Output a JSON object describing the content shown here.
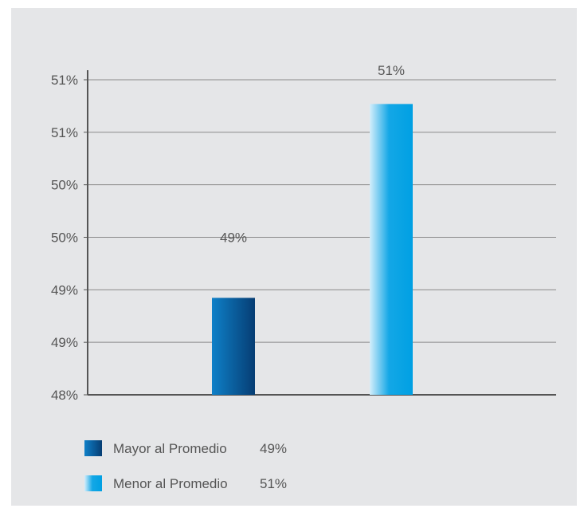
{
  "chart_data": {
    "type": "bar",
    "categories": [
      "Mayor al Promedio",
      "Menor al Promedio"
    ],
    "values": [
      49.0,
      51.0
    ],
    "value_labels": [
      "49%",
      "51%"
    ],
    "y_tick_labels": [
      "48%",
      "49%",
      "49%",
      "50%",
      "50%",
      "51%",
      "51%"
    ],
    "ylim": [
      48.0,
      51.25
    ],
    "grid": true,
    "legend": {
      "position": "bottom-left",
      "entries": [
        {
          "label": "Mayor al Promedio",
          "value": "49%",
          "color": "#0a5fa3"
        },
        {
          "label": "Menor al Promedio",
          "value": "51%",
          "color": "#10a4e4"
        }
      ]
    }
  },
  "colors": {
    "background": "#e5e6e8",
    "gridline": "#8a8a8a",
    "axis": "#555555",
    "bar_dark_start": "#0f80c8",
    "bar_dark_end": "#063d73",
    "bar_light_start": "#bfe6f9",
    "bar_light_end": "#009fe3"
  }
}
